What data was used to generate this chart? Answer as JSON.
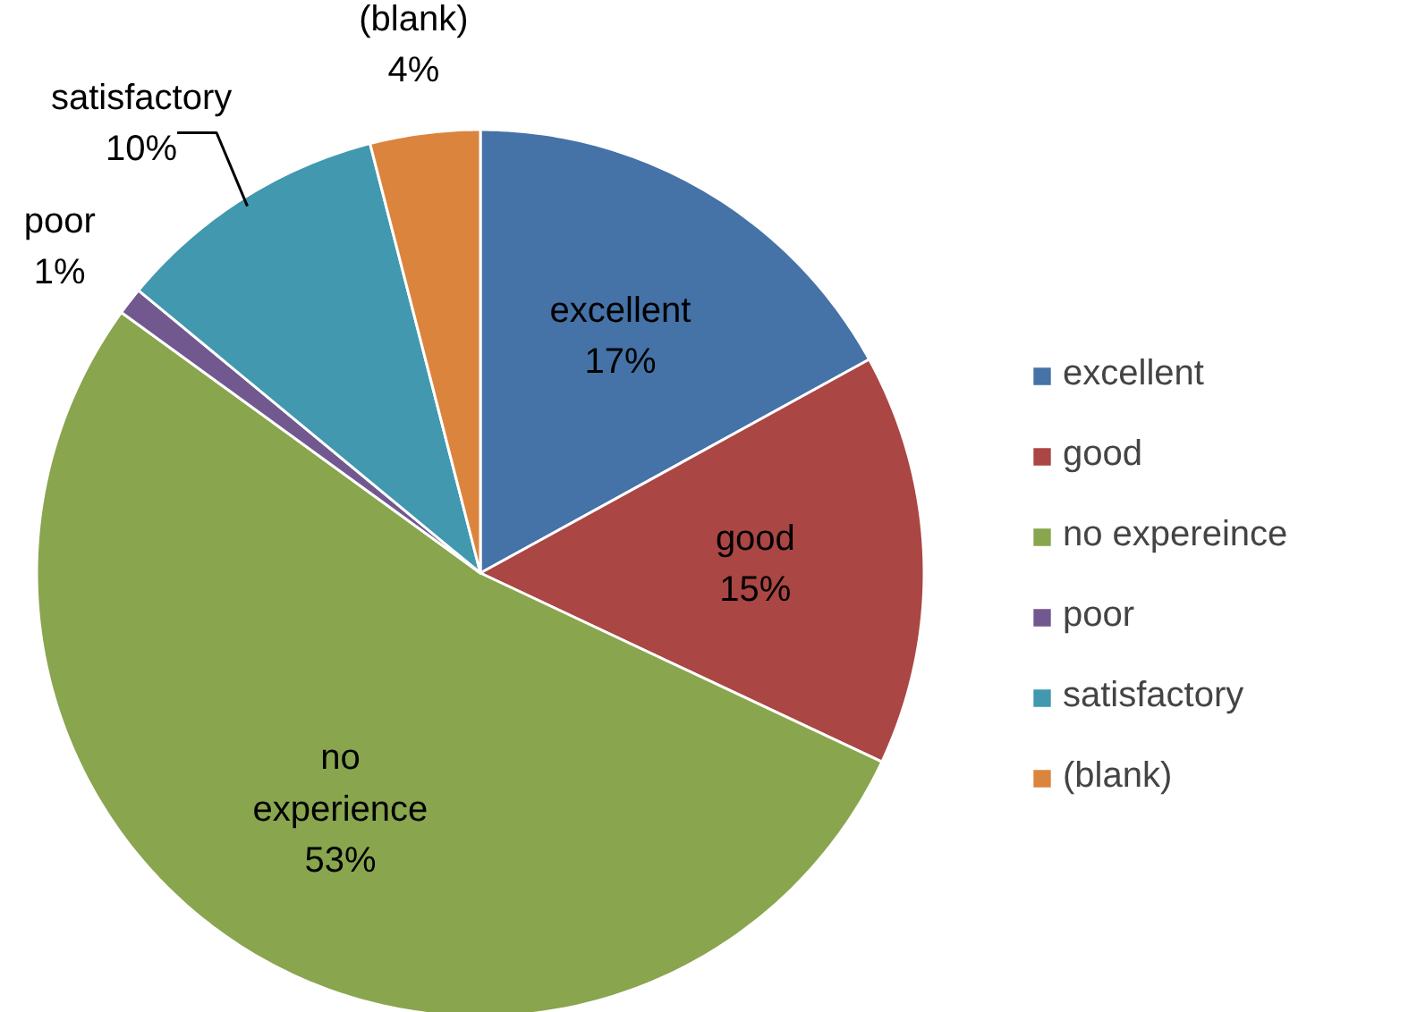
{
  "chart_data": {
    "type": "pie",
    "categories": [
      "excellent",
      "good",
      "no expereince",
      "poor",
      "satisfactory",
      "(blank)"
    ],
    "values": [
      17,
      15,
      53,
      1,
      10,
      4
    ],
    "colors": [
      "#4572a7",
      "#aa4643",
      "#89a54e",
      "#71588f",
      "#4198af",
      "#db843d"
    ],
    "value_labels": [
      "excellent\n17%",
      "good\n15%",
      "no\nexperience\n53%",
      "poor\n1%",
      "satisfactory\n10%",
      "(blank)\n4%"
    ],
    "legend": "right"
  }
}
